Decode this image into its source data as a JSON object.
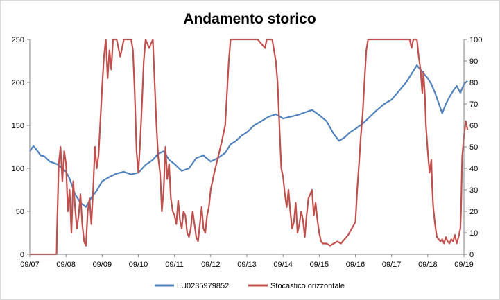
{
  "chart_data": {
    "type": "line",
    "title": "Andamento storico",
    "x_tick_labels": [
      "09/07",
      "09/08",
      "09/09",
      "09/10",
      "09/11",
      "09/12",
      "09/13",
      "09/14",
      "09/15",
      "09/16",
      "09/17",
      "09/18",
      "09/19"
    ],
    "y_left": {
      "ylim": [
        0,
        250
      ],
      "ticks": [
        0,
        50,
        100,
        150,
        200,
        250
      ]
    },
    "y_right": {
      "ylim": [
        0,
        100
      ],
      "ticks": [
        0,
        10,
        20,
        30,
        40,
        50,
        60,
        70,
        80,
        90,
        100
      ]
    },
    "grid": false,
    "legend_position": "bottom",
    "series": [
      {
        "name": "LU0235979852",
        "axis": "left",
        "color": "#4f81bd",
        "points": [
          [
            0.0,
            120
          ],
          [
            0.1,
            126
          ],
          [
            0.2,
            121
          ],
          [
            0.3,
            115
          ],
          [
            0.4,
            114
          ],
          [
            0.55,
            108
          ],
          [
            0.75,
            105
          ],
          [
            0.9,
            100
          ],
          [
            1.0,
            96
          ],
          [
            1.1,
            88
          ],
          [
            1.25,
            70
          ],
          [
            1.4,
            60
          ],
          [
            1.55,
            55
          ],
          [
            1.7,
            66
          ],
          [
            1.85,
            74
          ],
          [
            2.0,
            85
          ],
          [
            2.2,
            90
          ],
          [
            2.4,
            94
          ],
          [
            2.6,
            96
          ],
          [
            2.8,
            93
          ],
          [
            3.0,
            95
          ],
          [
            3.2,
            104
          ],
          [
            3.4,
            110
          ],
          [
            3.55,
            117
          ],
          [
            3.7,
            120
          ],
          [
            3.85,
            110
          ],
          [
            4.0,
            105
          ],
          [
            4.2,
            97
          ],
          [
            4.4,
            100
          ],
          [
            4.6,
            112
          ],
          [
            4.8,
            115
          ],
          [
            5.0,
            108
          ],
          [
            5.2,
            112
          ],
          [
            5.4,
            118
          ],
          [
            5.55,
            128
          ],
          [
            5.7,
            132
          ],
          [
            5.85,
            138
          ],
          [
            6.0,
            142
          ],
          [
            6.2,
            150
          ],
          [
            6.4,
            155
          ],
          [
            6.6,
            160
          ],
          [
            6.8,
            163
          ],
          [
            7.0,
            158
          ],
          [
            7.2,
            160
          ],
          [
            7.4,
            162
          ],
          [
            7.6,
            165
          ],
          [
            7.8,
            168
          ],
          [
            8.0,
            162
          ],
          [
            8.2,
            155
          ],
          [
            8.4,
            140
          ],
          [
            8.55,
            132
          ],
          [
            8.7,
            136
          ],
          [
            8.85,
            142
          ],
          [
            9.0,
            146
          ],
          [
            9.2,
            152
          ],
          [
            9.4,
            160
          ],
          [
            9.6,
            168
          ],
          [
            9.8,
            175
          ],
          [
            10.0,
            180
          ],
          [
            10.2,
            190
          ],
          [
            10.4,
            200
          ],
          [
            10.55,
            210
          ],
          [
            10.7,
            220
          ],
          [
            10.85,
            212
          ],
          [
            11.0,
            205
          ],
          [
            11.1,
            198
          ],
          [
            11.2,
            188
          ],
          [
            11.3,
            176
          ],
          [
            11.4,
            164
          ],
          [
            11.5,
            175
          ],
          [
            11.6,
            183
          ],
          [
            11.7,
            190
          ],
          [
            11.8,
            196
          ],
          [
            11.9,
            188
          ],
          [
            12.0,
            198
          ],
          [
            12.1,
            202
          ]
        ]
      },
      {
        "name": "Stocastico orizzontale",
        "axis": "right",
        "color": "#c0504d",
        "points": [
          [
            0.0,
            0
          ],
          [
            0.45,
            0
          ],
          [
            0.74,
            0
          ],
          [
            0.75,
            10
          ],
          [
            0.8,
            42
          ],
          [
            0.85,
            50
          ],
          [
            0.9,
            34
          ],
          [
            0.95,
            48
          ],
          [
            1.0,
            42
          ],
          [
            1.05,
            20
          ],
          [
            1.1,
            30
          ],
          [
            1.15,
            10
          ],
          [
            1.2,
            34
          ],
          [
            1.25,
            22
          ],
          [
            1.3,
            12
          ],
          [
            1.35,
            18
          ],
          [
            1.4,
            28
          ],
          [
            1.45,
            14
          ],
          [
            1.5,
            6
          ],
          [
            1.55,
            4
          ],
          [
            1.6,
            20
          ],
          [
            1.65,
            26
          ],
          [
            1.7,
            14
          ],
          [
            1.75,
            30
          ],
          [
            1.8,
            50
          ],
          [
            1.85,
            40
          ],
          [
            1.9,
            46
          ],
          [
            1.95,
            62
          ],
          [
            2.0,
            78
          ],
          [
            2.05,
            92
          ],
          [
            2.1,
            100
          ],
          [
            2.15,
            82
          ],
          [
            2.2,
            95
          ],
          [
            2.25,
            86
          ],
          [
            2.3,
            100
          ],
          [
            2.4,
            100
          ],
          [
            2.5,
            92
          ],
          [
            2.6,
            100
          ],
          [
            2.8,
            100
          ],
          [
            2.85,
            95
          ],
          [
            2.9,
            75
          ],
          [
            2.95,
            48
          ],
          [
            3.0,
            38
          ],
          [
            3.05,
            52
          ],
          [
            3.1,
            70
          ],
          [
            3.15,
            90
          ],
          [
            3.2,
            100
          ],
          [
            3.3,
            96
          ],
          [
            3.4,
            100
          ],
          [
            3.45,
            80
          ],
          [
            3.5,
            60
          ],
          [
            3.55,
            45
          ],
          [
            3.6,
            38
          ],
          [
            3.62,
            32
          ],
          [
            3.65,
            20
          ],
          [
            3.7,
            30
          ],
          [
            3.75,
            50
          ],
          [
            3.8,
            35
          ],
          [
            3.85,
            42
          ],
          [
            3.9,
            26
          ],
          [
            3.95,
            20
          ],
          [
            4.0,
            18
          ],
          [
            4.05,
            14
          ],
          [
            4.1,
            25
          ],
          [
            4.15,
            16
          ],
          [
            4.2,
            12
          ],
          [
            4.25,
            20
          ],
          [
            4.3,
            18
          ],
          [
            4.35,
            10
          ],
          [
            4.4,
            8
          ],
          [
            4.45,
            12
          ],
          [
            4.5,
            20
          ],
          [
            4.55,
            14
          ],
          [
            4.6,
            8
          ],
          [
            4.65,
            6
          ],
          [
            4.7,
            14
          ],
          [
            4.75,
            22
          ],
          [
            4.8,
            12
          ],
          [
            4.85,
            10
          ],
          [
            4.9,
            18
          ],
          [
            4.95,
            22
          ],
          [
            5.0,
            30
          ],
          [
            5.1,
            38
          ],
          [
            5.2,
            45
          ],
          [
            5.3,
            52
          ],
          [
            5.4,
            60
          ],
          [
            5.45,
            75
          ],
          [
            5.5,
            90
          ],
          [
            5.55,
            100
          ],
          [
            5.7,
            100
          ],
          [
            6.0,
            100
          ],
          [
            6.3,
            100
          ],
          [
            6.5,
            96
          ],
          [
            6.55,
            100
          ],
          [
            6.7,
            100
          ],
          [
            6.8,
            90
          ],
          [
            6.85,
            80
          ],
          [
            6.9,
            60
          ],
          [
            6.95,
            40
          ],
          [
            7.0,
            36
          ],
          [
            7.05,
            28
          ],
          [
            7.1,
            22
          ],
          [
            7.15,
            30
          ],
          [
            7.2,
            20
          ],
          [
            7.25,
            12
          ],
          [
            7.3,
            15
          ],
          [
            7.35,
            24
          ],
          [
            7.4,
            10
          ],
          [
            7.45,
            14
          ],
          [
            7.5,
            20
          ],
          [
            7.55,
            16
          ],
          [
            7.6,
            8
          ],
          [
            7.65,
            18
          ],
          [
            7.7,
            26
          ],
          [
            7.8,
            30
          ],
          [
            7.85,
            18
          ],
          [
            7.9,
            24
          ],
          [
            7.95,
            16
          ],
          [
            8.0,
            10
          ],
          [
            8.05,
            6
          ],
          [
            8.1,
            5
          ],
          [
            8.2,
            5
          ],
          [
            8.3,
            4
          ],
          [
            8.4,
            5
          ],
          [
            8.5,
            6
          ],
          [
            8.6,
            5
          ],
          [
            8.7,
            7
          ],
          [
            8.8,
            9
          ],
          [
            8.9,
            12
          ],
          [
            9.0,
            15
          ],
          [
            9.05,
            30
          ],
          [
            9.1,
            42
          ],
          [
            9.15,
            55
          ],
          [
            9.2,
            65
          ],
          [
            9.25,
            80
          ],
          [
            9.3,
            95
          ],
          [
            9.35,
            100
          ],
          [
            9.5,
            100
          ],
          [
            9.8,
            100
          ],
          [
            10.0,
            100
          ],
          [
            10.2,
            100
          ],
          [
            10.4,
            100
          ],
          [
            10.5,
            100
          ],
          [
            10.55,
            96
          ],
          [
            10.6,
            100
          ],
          [
            10.7,
            100
          ],
          [
            10.75,
            92
          ],
          [
            10.8,
            86
          ],
          [
            10.85,
            75
          ],
          [
            10.88,
            85
          ],
          [
            10.92,
            74
          ],
          [
            10.95,
            60
          ],
          [
            11.0,
            48
          ],
          [
            11.05,
            38
          ],
          [
            11.1,
            44
          ],
          [
            11.12,
            32
          ],
          [
            11.15,
            22
          ],
          [
            11.2,
            14
          ],
          [
            11.25,
            8
          ],
          [
            11.3,
            7
          ],
          [
            11.35,
            6
          ],
          [
            11.4,
            7
          ],
          [
            11.45,
            5
          ],
          [
            11.5,
            8
          ],
          [
            11.55,
            6
          ],
          [
            11.6,
            5
          ],
          [
            11.65,
            7
          ],
          [
            11.7,
            6
          ],
          [
            11.75,
            9
          ],
          [
            11.8,
            5
          ],
          [
            11.85,
            8
          ],
          [
            11.9,
            12
          ],
          [
            11.92,
            20
          ],
          [
            11.95,
            45
          ],
          [
            12.0,
            55
          ],
          [
            12.05,
            62
          ],
          [
            12.1,
            58
          ]
        ]
      }
    ]
  }
}
